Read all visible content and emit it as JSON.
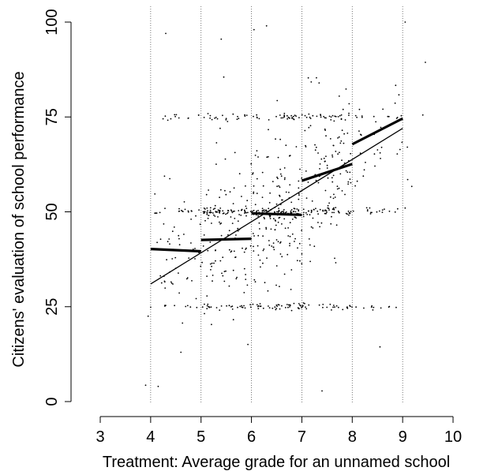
{
  "chart_data": {
    "type": "scatter",
    "xlabel": "Treatment: Average grade for an unnamed school",
    "ylabel": "Citizens' evaluation of school performance",
    "xlim": [
      3,
      10
    ],
    "ylim": [
      0,
      100
    ],
    "x_ticks": [
      3,
      4,
      5,
      6,
      7,
      8,
      9,
      10
    ],
    "y_ticks": [
      0,
      25,
      50,
      75,
      100
    ],
    "vertical_reference_lines": [
      4,
      5,
      6,
      7,
      8,
      9
    ],
    "overall_fit": {
      "x": [
        4,
        9
      ],
      "y": [
        31,
        72
      ]
    },
    "segment_means": [
      {
        "x": [
          4,
          5
        ],
        "y": [
          40.2,
          39.6
        ]
      },
      {
        "x": [
          5,
          6
        ],
        "y": [
          42.6,
          42.9
        ]
      },
      {
        "x": [
          6,
          7
        ],
        "y": [
          49.6,
          49.2
        ]
      },
      {
        "x": [
          7,
          8
        ],
        "y": [
          58.2,
          62.6
        ]
      },
      {
        "x": [
          8,
          9
        ],
        "y": [
          67.8,
          74.6
        ]
      }
    ],
    "scatter_notes": "approx. 1000 jittered respondent points; clusters near 25, 50 and 75",
    "points_visible_sample": [
      [
        3.9,
        4.3
      ],
      [
        3.95,
        22.5
      ],
      [
        4.15,
        4.0
      ],
      [
        4.3,
        97.0
      ],
      [
        4.6,
        13.0
      ],
      [
        5.45,
        85.5
      ],
      [
        5.4,
        95.5
      ],
      [
        6.05,
        98.0
      ],
      [
        6.3,
        99.0
      ],
      [
        7.4,
        2.8
      ],
      [
        7.95,
        25.3
      ],
      [
        8.55,
        14.4
      ],
      [
        9.05,
        100.0
      ],
      [
        9.1,
        58.5
      ],
      [
        9.4,
        75.5
      ],
      [
        9.45,
        89.4
      ],
      [
        8.9,
        50.8
      ],
      [
        9.05,
        51.0
      ]
    ]
  }
}
